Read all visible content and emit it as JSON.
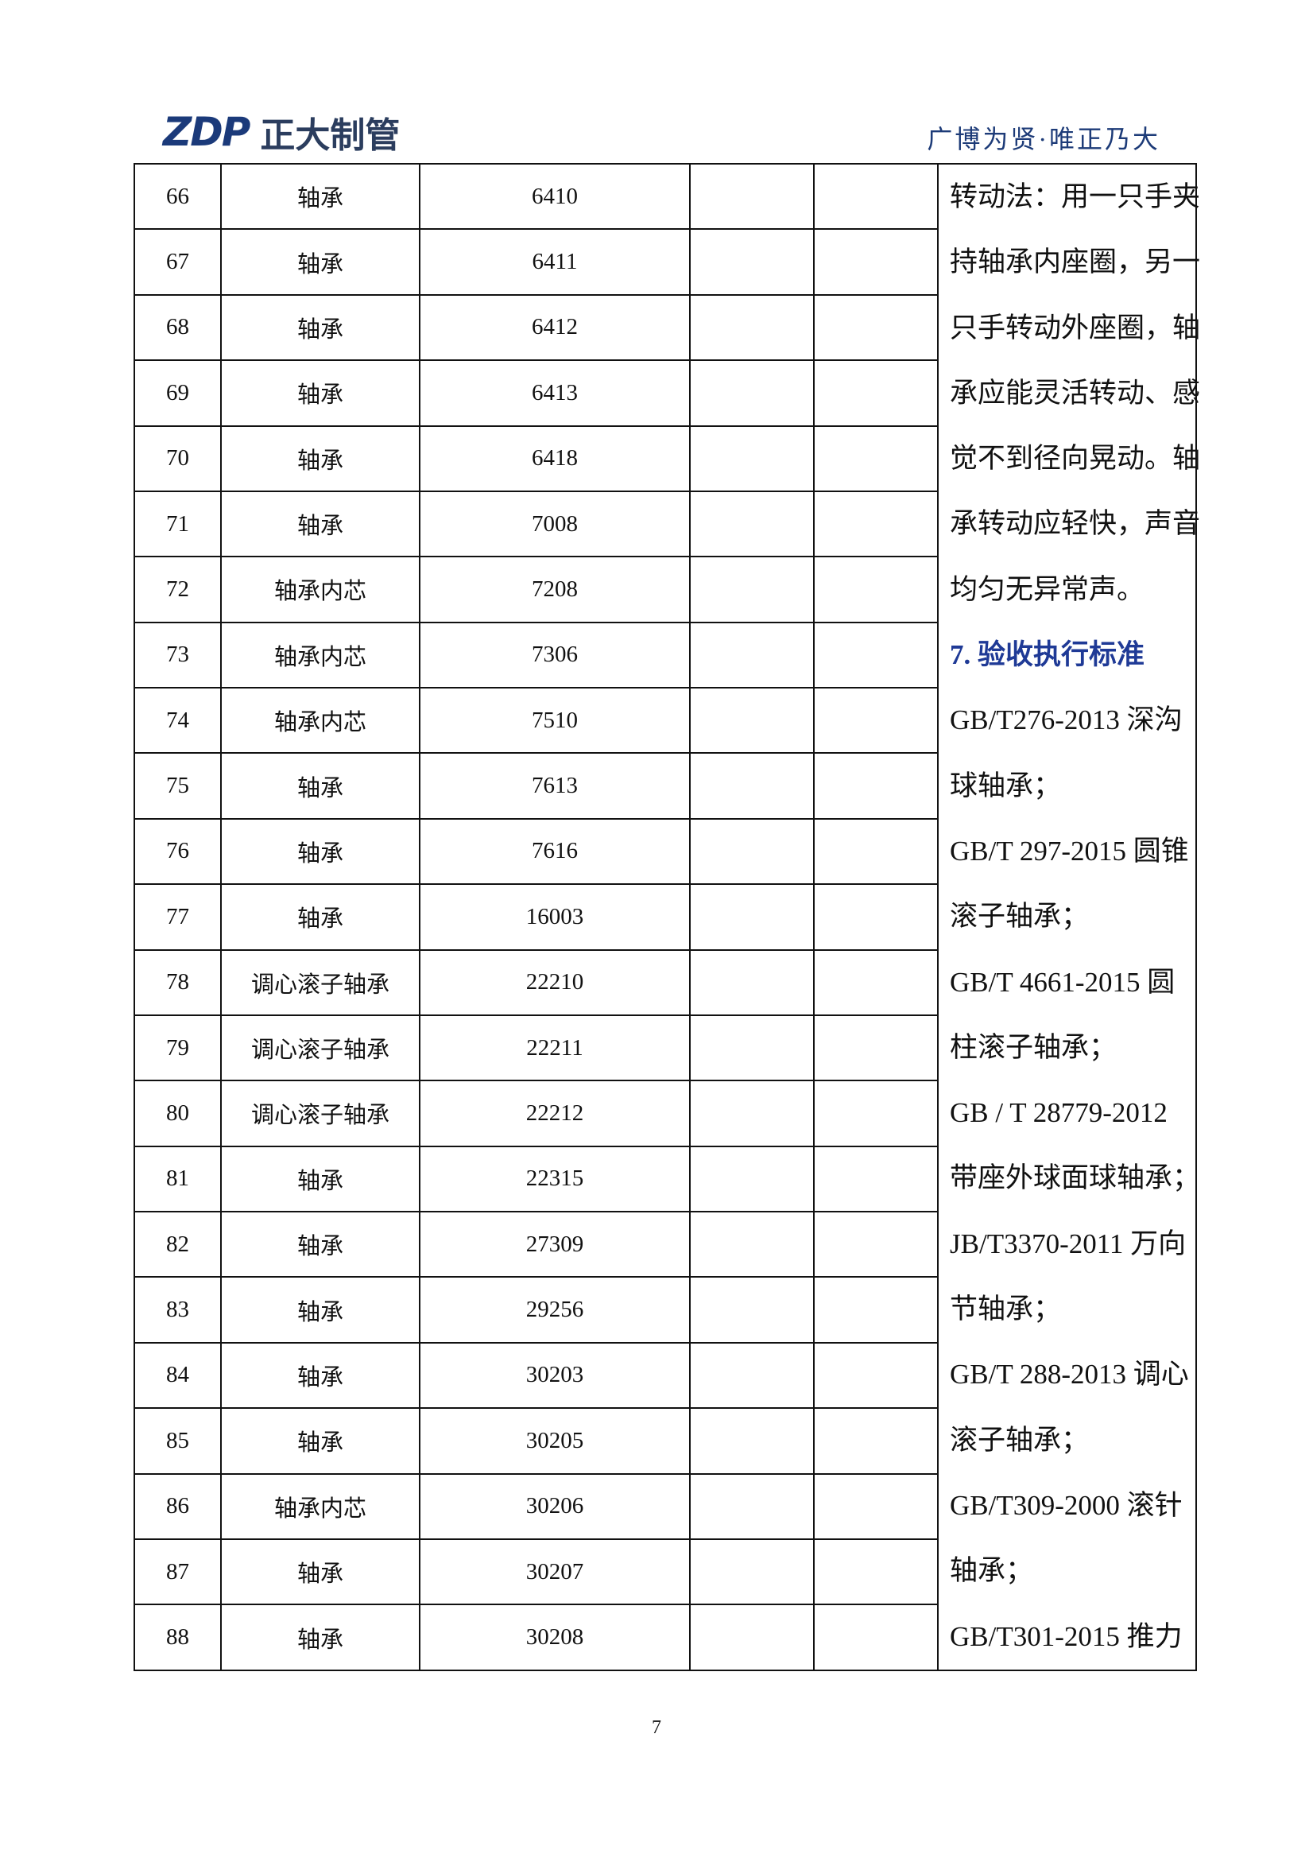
{
  "header": {
    "logo": "ZDP",
    "company": "正大制管",
    "slogan": "广博为贤·唯正乃大"
  },
  "table": {
    "rows": [
      [
        "66",
        "轴承",
        "6410"
      ],
      [
        "67",
        "轴承",
        "6411"
      ],
      [
        "68",
        "轴承",
        "6412"
      ],
      [
        "69",
        "轴承",
        "6413"
      ],
      [
        "70",
        "轴承",
        "6418"
      ],
      [
        "71",
        "轴承",
        "7008"
      ],
      [
        "72",
        "轴承内芯",
        "7208"
      ],
      [
        "73",
        "轴承内芯",
        "7306"
      ],
      [
        "74",
        "轴承内芯",
        "7510"
      ],
      [
        "75",
        "轴承",
        "7613"
      ],
      [
        "76",
        "轴承",
        "7616"
      ],
      [
        "77",
        "轴承",
        "16003"
      ],
      [
        "78",
        "调心滚子轴承",
        "22210"
      ],
      [
        "79",
        "调心滚子轴承",
        "22211"
      ],
      [
        "80",
        "调心滚子轴承",
        "22212"
      ],
      [
        "81",
        "轴承",
        "22315"
      ],
      [
        "82",
        "轴承",
        "27309"
      ],
      [
        "83",
        "轴承",
        "29256"
      ],
      [
        "84",
        "轴承",
        "30203"
      ],
      [
        "85",
        "轴承",
        "30205"
      ],
      [
        "86",
        "轴承内芯",
        "30206"
      ],
      [
        "87",
        "轴承",
        "30207"
      ],
      [
        "88",
        "轴承",
        "30208"
      ]
    ],
    "notes": {
      "paragraph": [
        "转动法：用一只手夹",
        "持轴承内座圈，另一",
        "只手转动外座圈，轴",
        "承应能灵活转动、感",
        "觉不到径向晃动。轴",
        "承转动应轻快，声音",
        "均匀无异常声。"
      ],
      "heading": "7. 验收执行标准",
      "standards": [
        "GB/T276-2013 深沟",
        "球轴承；",
        "GB/T 297-2015 圆锥",
        "滚子轴承；",
        "GB/T 4661-2015 圆",
        "柱滚子轴承；",
        "GB / T 28779-2012",
        "带座外球面球轴承；",
        "JB/T3370-2011 万向",
        "节轴承；",
        "GB/T 288-2013 调心",
        "滚子轴承；",
        "GB/T309-2000 滚针",
        "轴承；",
        "GB/T301-2015 推力"
      ]
    }
  },
  "footer": {
    "page_number": "7"
  }
}
